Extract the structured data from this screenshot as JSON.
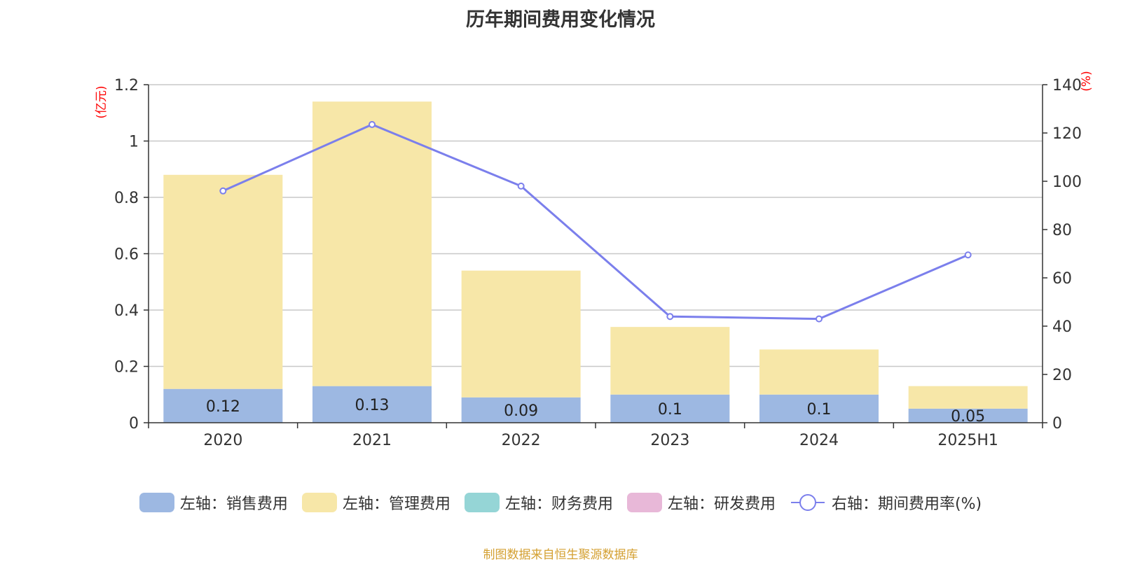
{
  "chart_data": {
    "type": "bar",
    "title": "历年期间费用变化情况",
    "categories": [
      "2020",
      "2021",
      "2022",
      "2023",
      "2024",
      "2025H1"
    ],
    "series": [
      {
        "name": "左轴：销售费用",
        "axis": "left",
        "kind": "bar",
        "color": "#9db8e2",
        "values": [
          0.12,
          0.13,
          0.09,
          0.1,
          0.1,
          0.05
        ],
        "labels": [
          "0.12",
          "0.13",
          "0.09",
          "0.1",
          "0.1",
          "0.05"
        ]
      },
      {
        "name": "左轴：管理费用",
        "axis": "left",
        "kind": "bar",
        "color": "#f7e7a8",
        "values": [
          0.76,
          1.01,
          0.45,
          0.24,
          0.16,
          0.08
        ]
      },
      {
        "name": "左轴：财务费用",
        "axis": "left",
        "kind": "bar",
        "color": "#95d5d6",
        "values": [
          0,
          0,
          0,
          0,
          0,
          0
        ]
      },
      {
        "name": "左轴：研发费用",
        "axis": "left",
        "kind": "bar",
        "color": "#e8b8d8",
        "values": [
          0,
          0,
          0,
          0,
          0,
          0
        ]
      },
      {
        "name": "右轴：期间费用率(%)",
        "axis": "right",
        "kind": "line",
        "color": "#7b7fec",
        "values": [
          96,
          123.5,
          98,
          44,
          43,
          69.5
        ]
      }
    ],
    "left_axis": {
      "unit": "(亿元)",
      "ylim": [
        0,
        1.2
      ],
      "ticks": [
        "0",
        "0.2",
        "0.4",
        "0.6",
        "0.8",
        "1",
        "1.2"
      ]
    },
    "right_axis": {
      "unit": "(%)",
      "ylim": [
        0,
        140
      ],
      "ticks": [
        "0",
        "20",
        "40",
        "60",
        "80",
        "100",
        "120",
        "140"
      ]
    },
    "grid": true,
    "legend": "bottom"
  },
  "source": "制图数据来自恒生聚源数据库"
}
